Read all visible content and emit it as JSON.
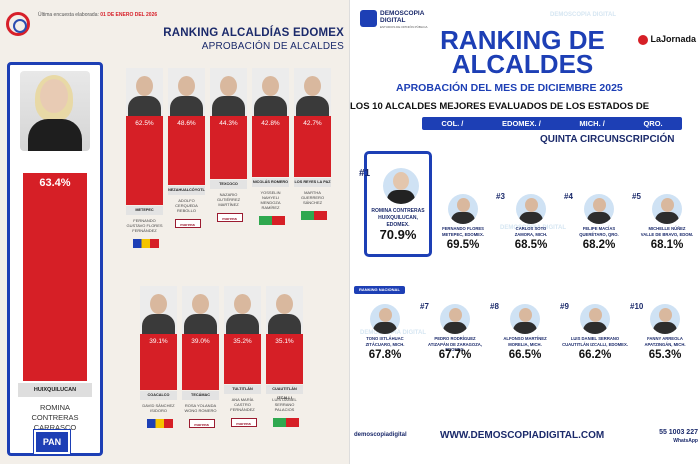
{
  "left": {
    "survey_label": "Última encuesta elaborada:",
    "survey_date": "01 DE ENERO DEL 2026",
    "title": "RANKING ALCALDÍAS EDOMEX",
    "subtitle": "APROBACIÓN DE ALCALDES",
    "featured": {
      "percent": "63.4%",
      "value": 63.4,
      "municipality": "HUIXQUILUCAN",
      "name_lines": [
        "ROMINA",
        "CONTRERAS",
        "CARRASCO"
      ],
      "party": "PAN"
    },
    "row1": [
      {
        "percent": "62.5%",
        "value": 62.5,
        "municipality": "METEPEC",
        "name_lines": [
          "FERNANDO",
          "GUSTAVO FLORES",
          "FERNÁNDEZ"
        ],
        "party": "coalition"
      },
      {
        "percent": "48.6%",
        "value": 48.6,
        "municipality": "NEZAHUALCÓYOTL",
        "name_lines": [
          "ADOLFO",
          "CERQUEDA",
          "REBOLLO"
        ],
        "party": "morena"
      },
      {
        "percent": "44.3%",
        "value": 44.3,
        "municipality": "TEXCOCO",
        "name_lines": [
          "NAZARIO",
          "GUTIÉRREZ",
          "MARTÍNEZ"
        ],
        "party": "morena"
      },
      {
        "percent": "42.8%",
        "value": 42.8,
        "municipality": "NICOLÁS ROMERO",
        "name_lines": [
          "YOSSELIN NAHYELI",
          "MENDOZA RAMÍREZ"
        ],
        "party": "verde"
      },
      {
        "percent": "42.7%",
        "value": 42.7,
        "municipality": "LOS REYES LA PAZ",
        "name_lines": [
          "MARTHA",
          "GUERRERO",
          "SÁNCHEZ"
        ],
        "party": "verde"
      }
    ],
    "row2": [
      {
        "percent": "39.1%",
        "value": 39.1,
        "municipality": "COACALCO",
        "name_lines": [
          "DAVID SÁNCHEZ",
          "ISIDORO"
        ],
        "party": "coalition"
      },
      {
        "percent": "39.0%",
        "value": 39.0,
        "municipality": "TECÁMAC",
        "name_lines": [
          "ROSA YOLANDA",
          "WONG ROMERO"
        ],
        "party": "morena"
      },
      {
        "percent": "35.2%",
        "value": 35.2,
        "municipality": "TULTITLÁN",
        "name_lines": [
          "ANA MARÍA",
          "CASTRO",
          "FERNÁNDEZ"
        ],
        "party": "morena"
      },
      {
        "percent": "35.1%",
        "value": 35.1,
        "municipality": "CUAUTITLÁN IZCALLI",
        "name_lines": [
          "LUIS DANIEL",
          "SERRANO",
          "PALACIOS"
        ],
        "party": "verde"
      }
    ],
    "party_text": {
      "morena": "morena",
      "pan": "PAN"
    }
  },
  "right": {
    "logo_text": [
      "DEMOSCOPIA",
      "DIGITAL"
    ],
    "logo_sub": "ESTUDIOS DE OPINIÓN PÚBLICA",
    "jornada": "LaJornada",
    "title": "RANKING DE ALCALDES",
    "subtitle": "APROBACIÓN DEL MES DE DICIEMBRE 2025",
    "line": "LOS 10 ALCALDES MEJORES EVALUADOS DE LOS ESTADOS DE",
    "states": [
      "COL. /",
      "EDOMEX. /",
      "MICH. /",
      "QRO."
    ],
    "circ": "QUINTA CIRCUNSCRIPCIÓN",
    "rank_label": "RANKING NACIONAL",
    "first": {
      "rank": "#1",
      "name": "ROMINA CONTRERAS",
      "place": "HUIXQUILUCAN, EDOMEX.",
      "percent": "70.9%"
    },
    "top_row": [
      {
        "rank": "",
        "name": "FERNANDO FLORES",
        "place": "METEPEC, EDOMEX.",
        "percent": "69.5%"
      },
      {
        "rank": "#3",
        "name": "CARLOS SOTO",
        "place": "ZAMORA, MICH.",
        "percent": "68.5%"
      },
      {
        "rank": "#4",
        "name": "FELIPE MACÍAS",
        "place": "QUERÉTARO, QRO.",
        "percent": "68.2%"
      },
      {
        "rank": "#5",
        "name": "MICHELLE NÚÑEZ",
        "place": "VALLE DE BRAVO, EDOM.",
        "percent": "68.1%"
      }
    ],
    "bottom_row": [
      {
        "rank": "",
        "name": "TONO IXTLÁHUAC",
        "place": "ZITÁCUARO, MICH.",
        "percent": "67.8%"
      },
      {
        "rank": "#7",
        "name": "PEDRO RODRÍGUEZ",
        "place": "ATIZAPÁN DE ZARAGOZA, EDOMEX.",
        "percent": "67.7%"
      },
      {
        "rank": "#8",
        "name": "ALFONSO MARTÍNEZ",
        "place": "MORELIA, MICH.",
        "percent": "66.5%"
      },
      {
        "rank": "#9",
        "name": "LUIS DANIEL SERRANO",
        "place": "CUAUTITLÁN IZCALLI, EDOMEX.",
        "percent": "66.2%"
      },
      {
        "rank": "#10",
        "name": "FANNY ARREOLA",
        "place": "APATZINGÁN, MICH.",
        "percent": "65.3%"
      }
    ],
    "social": "demoscopiadigital",
    "website": "WWW.DEMOSCOPIADIGITAL.COM",
    "phone": "55 1003 227",
    "whatsapp": "WhatsApp"
  }
}
